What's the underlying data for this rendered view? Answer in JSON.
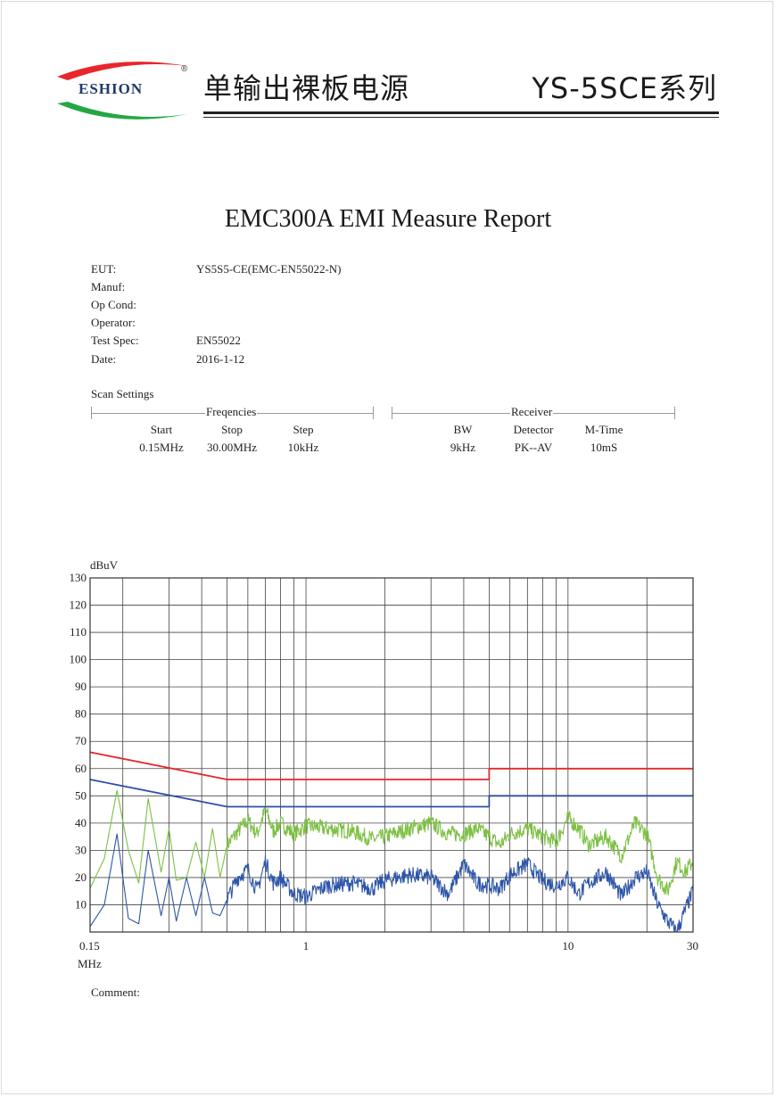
{
  "header": {
    "brand": "ESHION",
    "reg_mark": "®",
    "product_title": "单输出裸板电源",
    "series": "YS-5SCE系列"
  },
  "report": {
    "title": "EMC300A EMI Measure Report",
    "info": [
      {
        "label": "EUT:",
        "value": "YS5S5-CE(EMC-EN55022-N)"
      },
      {
        "label": "Manuf:",
        "value": ""
      },
      {
        "label": "Op Cond:",
        "value": ""
      },
      {
        "label": "Operator:",
        "value": ""
      },
      {
        "label": "Test Spec:",
        "value": "EN55022"
      },
      {
        "label": "Date:",
        "value": "2016-1-12"
      }
    ],
    "scan_settings": {
      "title": "Scan Settings",
      "frequencies": {
        "label": "Freqencies",
        "headers": [
          "Start",
          "Stop",
          "Step"
        ],
        "values": [
          "0.15MHz",
          "30.00MHz",
          "10kHz"
        ]
      },
      "receiver": {
        "label": "Receiver",
        "headers": [
          "BW",
          "Detector",
          "M-Time"
        ],
        "values": [
          "9kHz",
          "PK--AV",
          "10mS"
        ]
      }
    },
    "comment_label": "Comment:"
  },
  "colors": {
    "limit_qp": "#e8262b",
    "limit_av": "#2f4fa8",
    "peak_trace": "#7cc043",
    "avg_trace": "#2d55a8"
  },
  "chart_data": {
    "type": "line",
    "ylabel": "dBuV",
    "xlabel": "MHz",
    "x_scale": "log",
    "xlim": [
      0.15,
      30
    ],
    "ylim": [
      0,
      130
    ],
    "y_ticks": [
      130,
      120,
      110,
      100,
      90,
      80,
      70,
      60,
      50,
      40,
      30,
      20,
      10
    ],
    "x_tick_labels": [
      {
        "x": 0.15,
        "label": "0.15"
      },
      {
        "x": 1,
        "label": "1"
      },
      {
        "x": 10,
        "label": "10"
      },
      {
        "x": 30,
        "label": "30"
      }
    ],
    "grid": true,
    "series": [
      {
        "key": "limit_qp",
        "x": [
          0.15,
          0.5,
          0.5,
          5,
          5,
          30
        ],
        "y": [
          66,
          56,
          56,
          56,
          60,
          60
        ]
      },
      {
        "key": "limit_av",
        "x": [
          0.15,
          0.5,
          0.5,
          5,
          5,
          30
        ],
        "y": [
          56,
          46,
          46,
          46,
          50,
          50
        ]
      },
      {
        "key": "peak_trace",
        "x": [
          0.15,
          0.17,
          0.19,
          0.21,
          0.23,
          0.25,
          0.28,
          0.3,
          0.32,
          0.35,
          0.38,
          0.41,
          0.44,
          0.47,
          0.5,
          0.55,
          0.6,
          0.65,
          0.7,
          0.75,
          0.8,
          0.9,
          1.0,
          1.2,
          1.5,
          1.8,
          2.0,
          2.5,
          3,
          3.5,
          4,
          4.5,
          5,
          5.5,
          6,
          7,
          8,
          9,
          10,
          11,
          12,
          14,
          16,
          18,
          20,
          22,
          24,
          26,
          28,
          30
        ],
        "y": [
          16,
          27,
          52,
          30,
          18,
          49,
          22,
          38,
          19,
          20,
          33,
          20,
          38,
          20,
          32,
          37,
          41,
          36,
          45,
          37,
          40,
          36,
          39,
          38,
          37,
          34,
          35,
          38,
          40,
          36,
          36,
          38,
          35,
          32,
          36,
          38,
          35,
          33,
          42,
          38,
          32,
          35,
          28,
          40,
          36,
          20,
          15,
          26,
          22,
          26
        ]
      },
      {
        "key": "avg_trace",
        "x": [
          0.15,
          0.17,
          0.19,
          0.21,
          0.23,
          0.25,
          0.28,
          0.3,
          0.32,
          0.35,
          0.38,
          0.41,
          0.44,
          0.47,
          0.5,
          0.55,
          0.6,
          0.65,
          0.7,
          0.75,
          0.8,
          0.9,
          1.0,
          1.2,
          1.5,
          1.8,
          2.0,
          2.5,
          3,
          3.5,
          4,
          4.5,
          5,
          5.5,
          6,
          7,
          8,
          9,
          10,
          11,
          12,
          14,
          16,
          18,
          20,
          22,
          24,
          26,
          28,
          30
        ],
        "y": [
          2,
          10,
          36,
          5,
          3,
          30,
          6,
          20,
          4,
          20,
          6,
          20,
          7,
          6,
          12,
          20,
          23,
          15,
          26,
          18,
          20,
          14,
          13,
          17,
          18,
          16,
          19,
          21,
          20,
          14,
          25,
          18,
          17,
          16,
          21,
          25,
          19,
          17,
          20,
          14,
          18,
          22,
          13,
          20,
          22,
          10,
          4,
          0,
          8,
          15
        ]
      }
    ]
  }
}
